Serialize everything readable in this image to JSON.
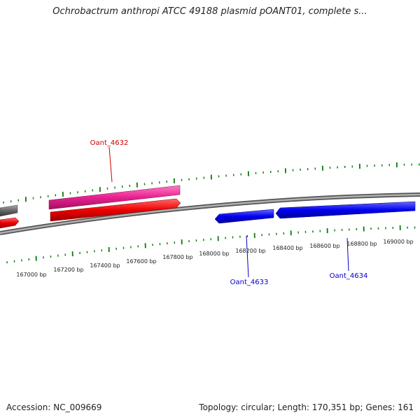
{
  "title": "Ochrobactrum anthropi ATCC 49188 plasmid pOANT01, complete s...",
  "footer": {
    "accession": "Accession: NC_009669",
    "summary": "Topology: circular; Length: 170,351 bp; Genes: 161"
  },
  "scale": {
    "tick_labels": [
      "167000 bp",
      "167200 bp",
      "167400 bp",
      "167600 bp",
      "167800 bp",
      "168000 bp",
      "168200 bp",
      "168400 bp",
      "168600 bp",
      "168800 bp",
      "169000 bp"
    ]
  },
  "genes": [
    {
      "label": "Oant_4632",
      "color": "#cc0000"
    },
    {
      "label": "Oant_4633",
      "color": "#0000cc"
    },
    {
      "label": "Oant_4634",
      "color": "#0000cc"
    }
  ],
  "colors": {
    "tick": "#0a7a0a",
    "backbone": "#777777",
    "pink": "#e8218f",
    "red": "#ee0000",
    "blue": "#0000ee",
    "gray_feature": "#666666"
  }
}
